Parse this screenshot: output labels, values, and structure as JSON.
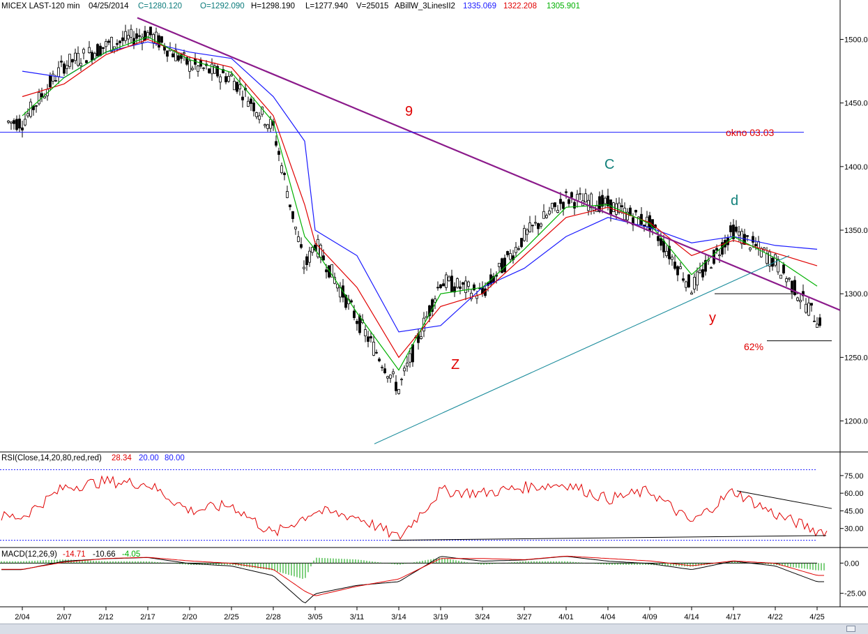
{
  "header": {
    "symbol": "MICEX LAST-120 min",
    "date": "04/25/2014",
    "close": "C=1280.120",
    "open": "O=1292.090",
    "high": "H=1298.190",
    "low": "L=1277.940",
    "volume": "V=25015",
    "study": "ABillW_3LinesII2",
    "line1": "1335.069",
    "line2": "1322.208",
    "line3": "1305.901"
  },
  "rsi": {
    "label": "RSI(Close,14,20,80,red,red)",
    "value": "28.34",
    "low": "20.00",
    "high": "80.00"
  },
  "macd": {
    "label": "MACD(12,26,9)",
    "v1": "-14.71",
    "v2": "-10.66",
    "v3": "-4.05"
  },
  "colors": {
    "blue_ma": "#1a1aff",
    "red_ma": "#e00000",
    "green_ma": "#00b000",
    "trendline": "#8b1a8b",
    "support": "#1b8c9c",
    "teal_text": "#11807a"
  },
  "annotations": {
    "nine": "9",
    "c": "C",
    "d": "d",
    "y": "y",
    "z": "Z",
    "okno": "okno 03.03",
    "fib": "62%"
  },
  "chart_data": [
    {
      "type": "candlestick",
      "title": "MICEX LAST-120 min",
      "x_ticks": [
        "2/04",
        "2/07",
        "2/12",
        "2/17",
        "2/20",
        "2/25",
        "2/28",
        "3/05",
        "3/11",
        "3/14",
        "3/19",
        "3/24",
        "3/27",
        "4/01",
        "4/04",
        "4/09",
        "4/14",
        "4/17",
        "4/22",
        "4/25"
      ],
      "y_ticks": [
        "1500.00",
        "1450.00",
        "1400.00",
        "1350.00",
        "1300.00",
        "1250.00",
        "1200.00"
      ],
      "ylim": [
        1180,
        1520
      ],
      "x": [
        "2/04",
        "2/07",
        "2/12",
        "2/17",
        "2/20",
        "2/25",
        "2/28",
        "3/03",
        "3/05",
        "3/11",
        "3/14",
        "3/19",
        "3/24",
        "3/27",
        "4/01",
        "4/04",
        "4/09",
        "4/14",
        "4/17",
        "4/22",
        "4/25"
      ],
      "close": [
        1435,
        1480,
        1495,
        1505,
        1480,
        1470,
        1430,
        1320,
        1340,
        1280,
        1225,
        1310,
        1300,
        1345,
        1375,
        1370,
        1355,
        1305,
        1350,
        1325,
        1280
      ],
      "series": [
        {
          "name": "1335.069",
          "color": "#1a1aff",
          "values": [
            1475,
            1470,
            1490,
            1498,
            1490,
            1485,
            1455,
            1420,
            1350,
            1330,
            1270,
            1275,
            1305,
            1320,
            1345,
            1360,
            1352,
            1340,
            1345,
            1338,
            1335
          ]
        },
        {
          "name": "1322.208",
          "color": "#e00000",
          "values": [
            1455,
            1465,
            1488,
            1500,
            1486,
            1478,
            1440,
            1370,
            1340,
            1305,
            1250,
            1290,
            1300,
            1330,
            1360,
            1368,
            1356,
            1330,
            1342,
            1332,
            1322
          ]
        },
        {
          "name": "1305.901",
          "color": "#00b000",
          "values": [
            1440,
            1470,
            1490,
            1502,
            1484,
            1474,
            1435,
            1345,
            1335,
            1285,
            1240,
            1300,
            1305,
            1335,
            1368,
            1370,
            1355,
            1315,
            1345,
            1328,
            1306
          ]
        }
      ],
      "trendline": {
        "from": [
          "2/17",
          1517
        ],
        "to": [
          "4/25",
          1320
        ]
      },
      "support_line": {
        "from": [
          "3/13",
          1182
        ],
        "to": [
          "4/22",
          1330
        ]
      },
      "h_lines": [
        1427,
        1300,
        1263
      ]
    },
    {
      "type": "line",
      "title": "RSI(Close,14,20,80,red,red)",
      "y_ticks": [
        "75.00",
        "60.00",
        "45.00",
        "30.00"
      ],
      "ylim": [
        15,
        85
      ],
      "x": [
        "2/04",
        "2/07",
        "2/12",
        "2/17",
        "2/20",
        "2/25",
        "2/28",
        "3/05",
        "3/11",
        "3/14",
        "3/19",
        "3/24",
        "3/27",
        "4/01",
        "4/04",
        "4/09",
        "4/14",
        "4/17",
        "4/22",
        "4/25"
      ],
      "values": [
        40,
        65,
        70,
        68,
        45,
        50,
        25,
        45,
        40,
        22,
        62,
        60,
        65,
        68,
        55,
        62,
        35,
        62,
        42,
        28
      ]
    },
    {
      "type": "line",
      "title": "MACD(12,26,9)",
      "y_ticks": [
        "0.00",
        "-25.00"
      ],
      "ylim": [
        -35,
        10
      ],
      "x": [
        "2/04",
        "2/07",
        "2/12",
        "2/17",
        "2/20",
        "2/25",
        "2/28",
        "3/03",
        "3/05",
        "3/11",
        "3/14",
        "3/19",
        "3/24",
        "3/27",
        "4/01",
        "4/04",
        "4/09",
        "4/14",
        "4/17",
        "4/22",
        "4/25"
      ],
      "series": [
        {
          "name": "-14.71",
          "values": [
            -5,
            2,
            4,
            5,
            0,
            -2,
            -10,
            -33,
            -25,
            -18,
            -15,
            6,
            2,
            3,
            6,
            2,
            0,
            -5,
            2,
            -2,
            -15
          ]
        },
        {
          "name": "-10.66",
          "values": [
            -6,
            0,
            3,
            4,
            1,
            -1,
            -6,
            -24,
            -28,
            -20,
            -14,
            3,
            3,
            2,
            5,
            3,
            1,
            -3,
            1,
            -1,
            -11
          ]
        }
      ]
    }
  ]
}
